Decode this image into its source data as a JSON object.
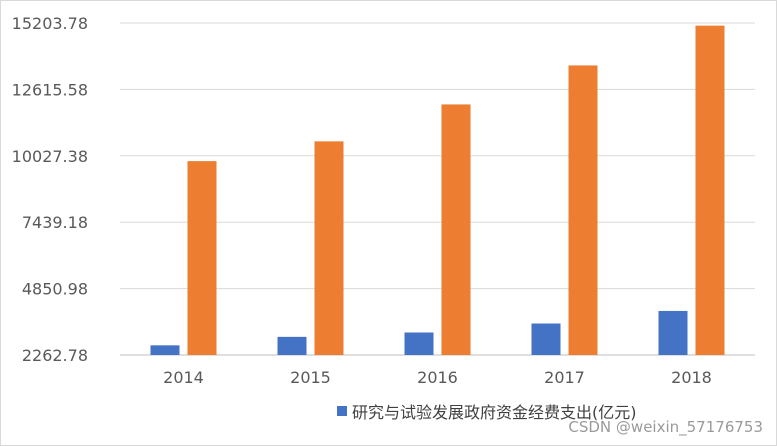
{
  "chart_data": {
    "type": "bar",
    "title": "",
    "xlabel": "",
    "ylabel": "",
    "categories": [
      "2014",
      "2015",
      "2016",
      "2017",
      "2018"
    ],
    "series": [
      {
        "name": "研究与试验发展政府资金经费支出(亿元)",
        "values": [
          2640,
          2970,
          3140,
          3490,
          3980
        ],
        "color": "#4472C4"
      },
      {
        "name": "",
        "values": [
          9820,
          10590,
          12030,
          13550,
          15100
        ],
        "color": "#ED7D31"
      }
    ],
    "ylim": [
      2262.78,
      15203.78
    ],
    "yticks": [
      "2262.78",
      "4850.98",
      "7439.18",
      "10027.38",
      "12615.58",
      "15203.78"
    ],
    "grid": true,
    "legend_position": "bottom"
  },
  "watermark": "CSDN @weixin_57176753"
}
